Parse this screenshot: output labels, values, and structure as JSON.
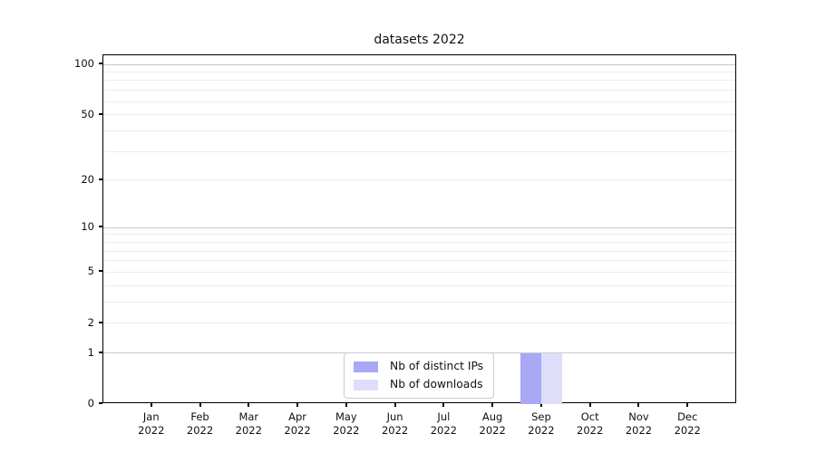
{
  "title": "datasets 2022",
  "colors": {
    "bar_distinct_ips": "#a8a8f5",
    "bar_downloads": "#dedefb",
    "grid_major": "#c8c8c8",
    "grid_minor": "#ececec",
    "axis": "#000000",
    "text": "#111111",
    "legend_border": "#cccccc"
  },
  "chart_data": {
    "type": "bar",
    "title": "datasets 2022",
    "categories": [
      "Jan",
      "Feb",
      "Mar",
      "Apr",
      "May",
      "Jun",
      "Jul",
      "Aug",
      "Sep",
      "Oct",
      "Nov",
      "Dec"
    ],
    "year_label": "2022",
    "series": [
      {
        "name": "Nb of distinct IPs",
        "color": "#a8a8f5",
        "values": [
          0,
          0,
          0,
          0,
          0,
          0,
          0,
          0,
          1,
          0,
          0,
          0
        ]
      },
      {
        "name": "Nb of downloads",
        "color": "#dedefb",
        "values": [
          0,
          0,
          0,
          0,
          0,
          0,
          0,
          0,
          1,
          0,
          0,
          0
        ]
      }
    ],
    "xlabel": "",
    "ylabel": "",
    "yscale": "log1p",
    "yticks": [
      0,
      1,
      2,
      5,
      10,
      20,
      50,
      100
    ],
    "major_grid_values": [
      1,
      10,
      100
    ],
    "minor_grid_values": [
      2,
      3,
      4,
      5,
      6,
      7,
      8,
      9,
      20,
      30,
      40,
      50,
      60,
      70,
      80,
      90
    ],
    "ylim": [
      0,
      113.3
    ],
    "grid": "both",
    "legend_position": "lower center"
  }
}
